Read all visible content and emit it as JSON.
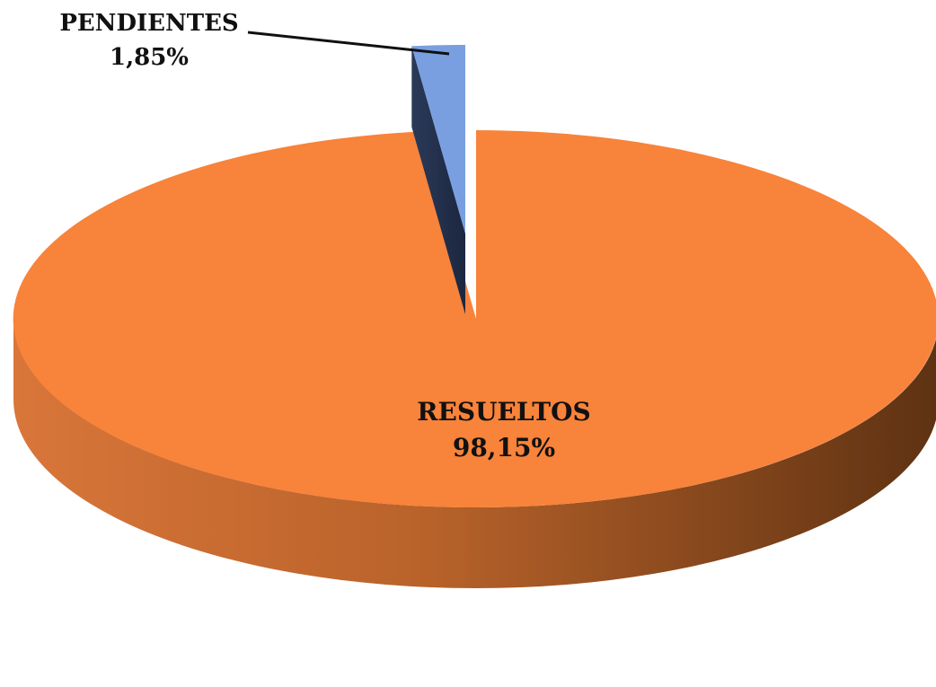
{
  "chart_data": {
    "type": "pie",
    "variant": "3d-exploded",
    "title": "",
    "slices": [
      {
        "label": "RESUELTOS",
        "value_label": "98,15%",
        "value": 98.15,
        "color": "#F8833A"
      },
      {
        "label": "PENDIENTES",
        "value_label": "1,85%",
        "value": 1.85,
        "color": "#7A9FE0",
        "exploded": true
      }
    ],
    "legend": "none",
    "data_labels": true
  }
}
